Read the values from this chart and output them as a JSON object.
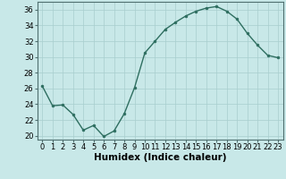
{
  "x": [
    0,
    1,
    2,
    3,
    4,
    5,
    6,
    7,
    8,
    9,
    10,
    11,
    12,
    13,
    14,
    15,
    16,
    17,
    18,
    19,
    20,
    21,
    22,
    23
  ],
  "y": [
    26.3,
    23.8,
    23.9,
    22.7,
    20.7,
    21.3,
    19.9,
    20.6,
    22.8,
    26.1,
    30.5,
    32.0,
    33.5,
    34.4,
    35.2,
    35.8,
    36.2,
    36.4,
    35.8,
    34.8,
    33.0,
    31.5,
    30.2,
    29.9
  ],
  "bg_color": "#c8e8e8",
  "line_color": "#2e6e60",
  "marker_color": "#2e6e60",
  "grid_color_major": "#a8cece",
  "grid_color_minor": "#b8d8d8",
  "xlabel": "Humidex (Indice chaleur)",
  "ylim": [
    19.5,
    37.0
  ],
  "xlim": [
    -0.5,
    23.5
  ],
  "yticks": [
    20,
    22,
    24,
    26,
    28,
    30,
    32,
    34,
    36
  ],
  "xticks": [
    0,
    1,
    2,
    3,
    4,
    5,
    6,
    7,
    8,
    9,
    10,
    11,
    12,
    13,
    14,
    15,
    16,
    17,
    18,
    19,
    20,
    21,
    22,
    23
  ],
  "xtick_labels": [
    "0",
    "1",
    "2",
    "3",
    "4",
    "5",
    "6",
    "7",
    "8",
    "9",
    "10",
    "11",
    "12",
    "13",
    "14",
    "15",
    "16",
    "17",
    "18",
    "19",
    "20",
    "21",
    "22",
    "23"
  ],
  "xlabel_fontsize": 7.5,
  "tick_fontsize": 6.0,
  "line_width": 1.0,
  "marker_size": 2.0
}
